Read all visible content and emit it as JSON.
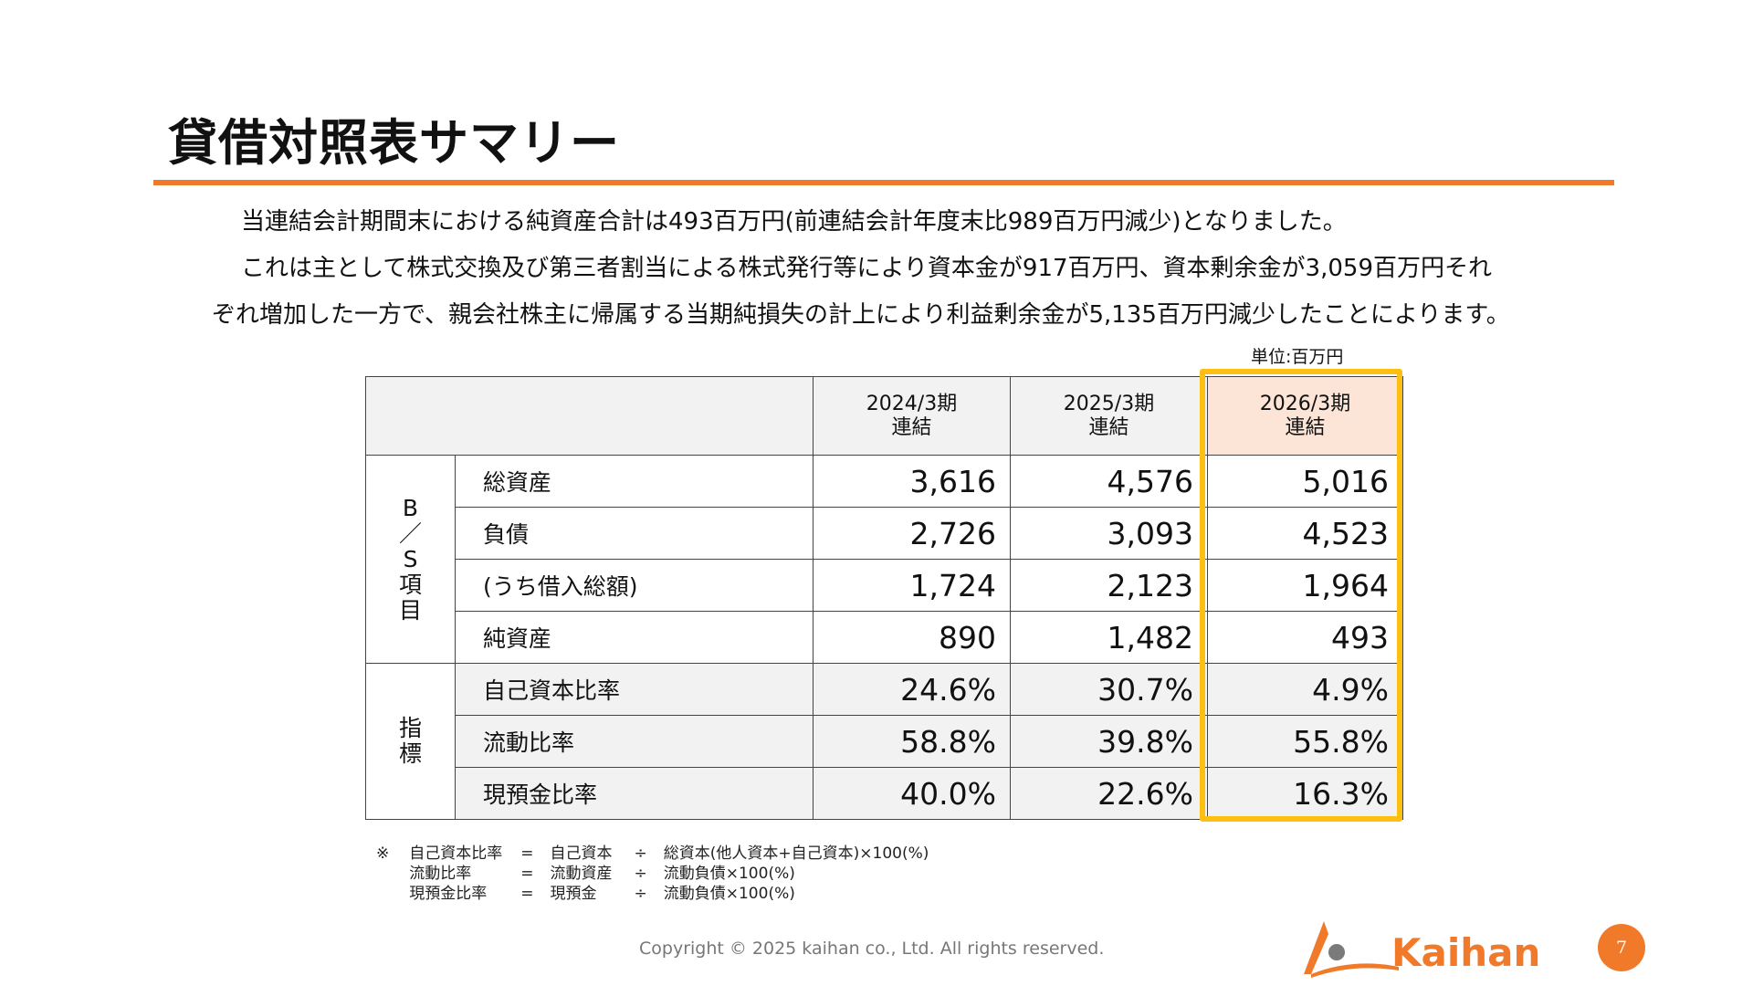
{
  "title": "貸借対照表サマリー",
  "paragraph": {
    "line1": "当連結会計期間末における純資産合計は493百万円(前連結会計年度末比989百万円減少)となりました。",
    "line2": "これは主として株式交換及び第三者割当による株式発行等により資本金が917百万円、資本剰余金が3,059百万円それ",
    "line3": "ぞれ増加した一方で、親会社株主に帰属する当期純損失の計上により利益剰余金が5,135百万円減少したことによります。"
  },
  "unit": "単位:百万円",
  "table": {
    "periods": [
      {
        "year": "2024/3期",
        "type": "連結"
      },
      {
        "year": "2025/3期",
        "type": "連結"
      },
      {
        "year": "2026/3期",
        "type": "連結"
      }
    ],
    "groups": {
      "bs": "B／S項目",
      "indicators": "指標"
    },
    "rows": [
      {
        "label": "総資産",
        "values": [
          "3,616",
          "4,576",
          "5,016"
        ]
      },
      {
        "label": "負債",
        "values": [
          "2,726",
          "3,093",
          "4,523"
        ]
      },
      {
        "label": "(うち借入総額)",
        "values": [
          "1,724",
          "2,123",
          "1,964"
        ]
      },
      {
        "label": "純資産",
        "values": [
          "890",
          "1,482",
          "493"
        ]
      },
      {
        "label": "自己資本比率",
        "values": [
          "24.6%",
          "30.7%",
          "4.9%"
        ]
      },
      {
        "label": "流動比率",
        "values": [
          "58.8%",
          "39.8%",
          "55.8%"
        ]
      },
      {
        "label": "現預金比率",
        "values": [
          "40.0%",
          "22.6%",
          "16.3%"
        ]
      }
    ],
    "highlight_color": "#fcbf12",
    "highlight_header_bg": "#fce4d6"
  },
  "notes": {
    "mark": "※",
    "rows": [
      {
        "term": "自己資本比率",
        "eq": "=",
        "num": "自己資本",
        "div": "÷",
        "den": "総資本(他人資本+自己資本)×100(%)"
      },
      {
        "term": "流動比率",
        "eq": "=",
        "num": "流動資産",
        "div": "÷",
        "den": "流動負債×100(%)"
      },
      {
        "term": "現預金比率",
        "eq": "=",
        "num": "現預金",
        "div": "÷",
        "den": "流動負債×100(%)"
      }
    ]
  },
  "footer": {
    "copyright": "Copyright © 2025 kaihan co., Ltd. All rights reserved."
  },
  "logo": {
    "text": "Kaihan",
    "color": "#f07a2a"
  },
  "page_number": "7",
  "accent": "#f07a2a"
}
